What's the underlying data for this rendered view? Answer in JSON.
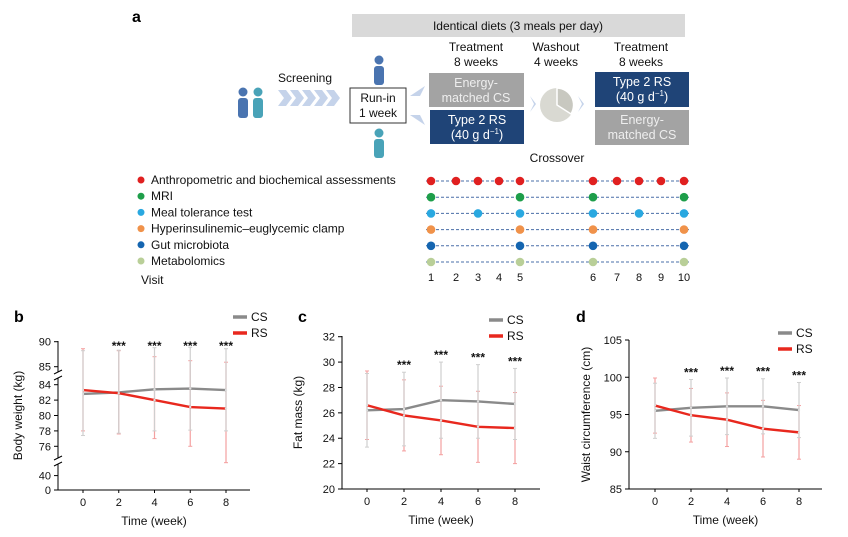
{
  "panel_a": {
    "letter": "a",
    "diet_banner": "Identical diets (3 meals per day)",
    "screening": "Screening",
    "runin": [
      "Run-in",
      "1 week"
    ],
    "treatment1": [
      "Treatment",
      "8 weeks"
    ],
    "washout": [
      "Washout",
      "4 weeks"
    ],
    "treatment2": [
      "Treatment",
      "8 weeks"
    ],
    "crossover": "Crossover",
    "box_cs": [
      "Energy-",
      "matched CS"
    ],
    "box_rs": [
      "Type 2 RS",
      "(40 g d",
      "−1",
      ")"
    ],
    "colors": {
      "cs_box": "#a3a3a3",
      "rs_box": "#1f4477",
      "banner": "#d9d9d9"
    },
    "visit_label": "Visit",
    "visits": [
      "1",
      "2",
      "3",
      "4",
      "5",
      "6",
      "7",
      "8",
      "9",
      "10"
    ],
    "assessments": [
      {
        "name": "Anthropometric and biochemical assessments",
        "color": "#e02020",
        "visits": [
          1,
          2,
          3,
          4,
          5,
          6,
          7,
          8,
          9,
          10
        ]
      },
      {
        "name": "MRI",
        "color": "#1e9e4a",
        "visits": [
          1,
          5,
          6,
          10
        ]
      },
      {
        "name": "Meal tolerance test",
        "color": "#29a8e0",
        "visits": [
          1,
          3,
          5,
          6,
          8,
          10
        ]
      },
      {
        "name": "Hyperinsulinemic–euglycemic clamp",
        "color": "#f0924a",
        "visits": [
          1,
          5,
          6,
          10
        ]
      },
      {
        "name": "Gut microbiota",
        "color": "#1565b0",
        "visits": [
          1,
          5,
          6,
          10
        ]
      },
      {
        "name": "Metabolomics",
        "color": "#b9cf98",
        "visits": [
          1,
          5,
          6,
          10
        ]
      }
    ]
  },
  "chart_data": [
    {
      "panel": "b",
      "type": "line",
      "xlabel": "Time (week)",
      "ylabel": "Body weight (kg)",
      "x": [
        0,
        2,
        4,
        6,
        8
      ],
      "yticks": [
        0,
        40,
        76,
        78,
        80,
        82,
        84,
        85,
        90
      ],
      "y_axis_breaks": [
        [
          40,
          76
        ],
        [
          84,
          85
        ]
      ],
      "series": [
        {
          "name": "CS",
          "color": "#8a8a8a",
          "values": [
            82.8,
            83.0,
            83.4,
            83.5,
            83.3
          ],
          "sd": [
            5.4,
            5.3,
            5.4,
            5.4,
            5.3
          ]
        },
        {
          "name": "RS",
          "color": "#e8281e",
          "values": [
            83.3,
            82.9,
            82.0,
            81.1,
            80.9
          ],
          "sd": [
            5.3,
            5.3,
            5.0,
            5.1,
            5.0
          ]
        }
      ],
      "significance": [
        "",
        "***",
        "***",
        "***",
        "***"
      ],
      "legend": "top-right"
    },
    {
      "panel": "c",
      "type": "line",
      "xlabel": "Time (week)",
      "ylabel": "Fat mass (kg)",
      "x": [
        0,
        2,
        4,
        6,
        8
      ],
      "ylim": [
        20,
        32
      ],
      "yticks": [
        20,
        22,
        24,
        26,
        28,
        30,
        32
      ],
      "series": [
        {
          "name": "CS",
          "color": "#8a8a8a",
          "values": [
            26.2,
            26.3,
            27.0,
            26.9,
            26.7
          ],
          "sd": [
            2.9,
            2.9,
            3.0,
            2.9,
            2.8
          ]
        },
        {
          "name": "RS",
          "color": "#e8281e",
          "values": [
            26.6,
            25.8,
            25.4,
            24.9,
            24.8
          ],
          "sd": [
            2.7,
            2.8,
            2.7,
            2.8,
            2.8
          ]
        }
      ],
      "significance": [
        "",
        "***",
        "***",
        "***",
        "***"
      ],
      "legend": "top-right"
    },
    {
      "panel": "d",
      "type": "line",
      "xlabel": "Time (week)",
      "ylabel": "Waist circumference (cm)",
      "x": [
        0,
        2,
        4,
        6,
        8
      ],
      "ylim": [
        85,
        105
      ],
      "yticks": [
        85,
        90,
        95,
        100,
        105
      ],
      "series": [
        {
          "name": "CS",
          "color": "#8a8a8a",
          "values": [
            95.5,
            95.9,
            96.1,
            96.1,
            95.6
          ],
          "sd": [
            3.7,
            3.8,
            3.8,
            3.7,
            3.7
          ]
        },
        {
          "name": "RS",
          "color": "#e8281e",
          "values": [
            96.2,
            94.9,
            94.3,
            93.1,
            92.6
          ],
          "sd": [
            3.7,
            3.6,
            3.6,
            3.8,
            3.6
          ]
        }
      ],
      "significance": [
        "",
        "***",
        "***",
        "***",
        "***"
      ],
      "legend": "top-right"
    }
  ]
}
